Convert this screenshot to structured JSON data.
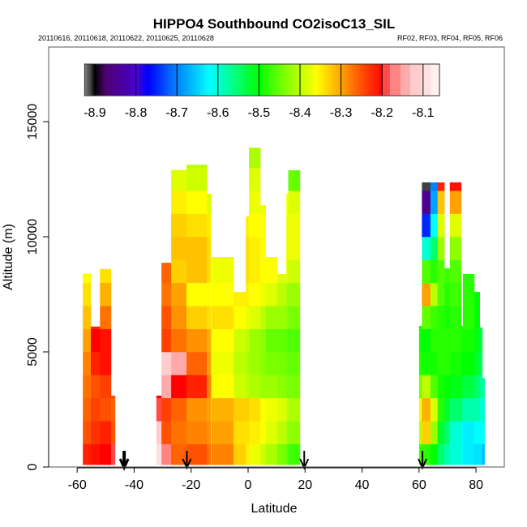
{
  "chart_data": {
    "type": "heatmap",
    "title": "HIPPO4 Southbound CO2isoC13_SIL",
    "subtitle_left": "20110616, 20110618, 20110622, 20110625, 20110628",
    "subtitle_right": "RF02, RF03, RF04, RF05, RF06",
    "xlabel": "Latitude",
    "ylabel": "Altitude (m)",
    "xlim": [
      -70,
      90
    ],
    "ylim": [
      0,
      18000
    ],
    "x_ticks": [
      "-60",
      "-40",
      "-20",
      "0",
      "20",
      "40",
      "60",
      "80"
    ],
    "x_tick_values": [
      -60,
      -40,
      -20,
      0,
      20,
      40,
      60,
      80
    ],
    "y_ticks": [
      "0",
      "5000",
      "10000",
      "15000"
    ],
    "y_tick_values": [
      0,
      5000,
      10000,
      15000
    ],
    "colorbar": {
      "range": [
        -8.925,
        -8.06
      ],
      "tick_labels": [
        "-8.9",
        "-8.8",
        "-8.7",
        "-8.6",
        "-8.5",
        "-8.4",
        "-8.3",
        "-8.2",
        "-8.1"
      ],
      "tick_values": [
        -8.9,
        -8.8,
        -8.7,
        -8.6,
        -8.5,
        -8.4,
        -8.3,
        -8.2,
        -8.1
      ],
      "placement": "top-inset"
    },
    "band_height_m": 1000,
    "columns": [
      {
        "lat": [
          -58,
          -55.2
        ],
        "alt": [
          100,
          8400
        ],
        "values": [
          -8.22,
          -8.25,
          -8.26,
          -8.27,
          -8.28,
          -8.3,
          -8.32,
          -8.34,
          -8.36
        ]
      },
      {
        "lat": [
          -55.2,
          -52
        ],
        "alt": [
          100,
          6100
        ],
        "values": [
          -8.21,
          -8.23,
          -8.24,
          -8.25,
          -8.22,
          -8.2,
          -8.22
        ]
      },
      {
        "lat": [
          -52,
          -48.1
        ],
        "alt": [
          100,
          8600
        ],
        "values": [
          -8.2,
          -8.22,
          -8.25,
          -8.24,
          -8.21,
          -8.21,
          -8.27,
          -8.31,
          -8.34
        ]
      },
      {
        "lat": [
          -48.1,
          -46.7
        ],
        "alt": [
          100,
          3100
        ],
        "values": [
          -8.19,
          -8.25,
          -8.26,
          -8.25
        ]
      },
      {
        "lat": [
          -32.2,
          -30.4
        ],
        "alt": [
          100,
          3100
        ],
        "values": [
          -8.1,
          -8.12,
          -8.19,
          -8.2
        ]
      },
      {
        "lat": [
          -30.4,
          -27
        ],
        "alt": [
          100,
          8870
        ],
        "values": [
          -8.16,
          -8.25,
          -8.24,
          -8.13,
          -8.11,
          -8.24,
          -8.25,
          -8.27,
          -8.26
        ]
      },
      {
        "lat": [
          -27,
          -21.6
        ],
        "alt": [
          100,
          12900
        ],
        "values": [
          -8.26,
          -8.27,
          -8.26,
          -8.2,
          -8.14,
          -8.27,
          -8.29,
          -8.3,
          -8.33,
          -8.32,
          -8.33,
          -8.35,
          -8.38
        ]
      },
      {
        "lat": [
          -21.6,
          -14.5
        ],
        "alt": [
          100,
          13130
        ],
        "values": [
          -8.25,
          -8.28,
          -8.29,
          -8.22,
          -8.26,
          -8.29,
          -8.33,
          -8.36,
          -8.32,
          -8.32,
          -8.34,
          -8.36,
          -8.39,
          -8.4
        ]
      },
      {
        "lat": [
          -14.5,
          -13
        ],
        "alt": [
          100,
          11870
        ],
        "values": [
          -8.27,
          -8.29,
          -8.3,
          -8.28,
          -8.3,
          -8.31,
          -8.34,
          -8.36,
          -8.34,
          -8.34,
          -8.35,
          -8.38
        ]
      },
      {
        "lat": [
          -12.8,
          -5.1
        ],
        "alt": [
          100,
          9120
        ],
        "values": [
          -8.28,
          -8.3,
          -8.31,
          -8.36,
          -8.37,
          -8.36,
          -8.34,
          -8.36,
          -8.37,
          -8.37
        ]
      },
      {
        "lat": [
          -5.1,
          -0.8
        ],
        "alt": [
          100,
          7600
        ],
        "values": [
          -8.33,
          -8.34,
          -8.33,
          -8.39,
          -8.4,
          -8.39,
          -8.36,
          -8.35
        ]
      },
      {
        "lat": [
          -0.8,
          0.3
        ],
        "alt": [
          100,
          10880
        ],
        "values": [
          -8.35,
          -8.34,
          -8.33,
          -8.4,
          -8.41,
          -8.4,
          -8.37,
          -8.35,
          -8.34,
          -8.34,
          -8.35
        ]
      },
      {
        "lat": [
          0.3,
          4.3
        ],
        "alt": [
          100,
          13870
        ],
        "values": [
          -8.37,
          -8.35,
          -8.34,
          -8.41,
          -8.42,
          -8.42,
          -8.38,
          -8.36,
          -8.35,
          -8.35,
          -8.36,
          -8.37,
          -8.38,
          -8.41
        ]
      },
      {
        "lat": [
          4.3,
          6.2
        ],
        "alt": [
          100,
          11370
        ],
        "values": [
          -8.39,
          -8.36,
          -8.36,
          -8.42,
          -8.43,
          -8.43,
          -8.4,
          -8.37,
          -8.36,
          -8.36,
          -8.36,
          -8.37
        ]
      },
      {
        "lat": [
          6.2,
          10.2
        ],
        "alt": [
          100,
          9120
        ],
        "values": [
          -8.41,
          -8.38,
          -8.37,
          -8.42,
          -8.44,
          -8.45,
          -8.42,
          -8.38,
          -8.36,
          -8.36
        ]
      },
      {
        "lat": [
          10.2,
          13.4
        ],
        "alt": [
          100,
          8380
        ],
        "values": [
          -8.44,
          -8.4,
          -8.38,
          -8.43,
          -8.44,
          -8.45,
          -8.42,
          -8.4,
          -8.38
        ]
      },
      {
        "lat": [
          13.4,
          14.1
        ],
        "alt": [
          100,
          11870
        ],
        "values": [
          -8.45,
          -8.42,
          -8.4,
          -8.44,
          -8.45,
          -8.46,
          -8.43,
          -8.42,
          -8.38,
          -8.37,
          -8.37,
          -8.36
        ]
      },
      {
        "lat": [
          14.1,
          18.2
        ],
        "alt": [
          100,
          12890
        ],
        "values": [
          -8.47,
          -8.43,
          -8.41,
          -8.44,
          -8.45,
          -8.46,
          -8.44,
          -8.42,
          -8.39,
          -8.37,
          -8.37,
          -8.38,
          -8.45
        ]
      },
      {
        "lat": [
          60,
          61
        ],
        "alt": [
          100,
          6130
        ],
        "values": [
          -8.47,
          -8.4,
          -8.37,
          -8.44,
          -8.48,
          -8.49,
          -8.49
        ]
      },
      {
        "lat": [
          61,
          64
        ],
        "alt": [
          100,
          12360
        ],
        "values": [
          -8.48,
          -8.33,
          -8.31,
          -8.4,
          -8.49,
          -8.5,
          -8.45,
          -8.3,
          -8.46,
          -8.6,
          -8.75,
          -8.85,
          -8.91
        ]
      },
      {
        "lat": [
          64,
          66.5
        ],
        "alt": [
          100,
          12360
        ],
        "values": [
          -8.5,
          -8.42,
          -8.38,
          -8.46,
          -8.49,
          -8.48,
          -8.47,
          -8.4,
          -8.48,
          -8.55,
          -8.62,
          -8.68,
          -8.7
        ]
      },
      {
        "lat": [
          66.5,
          68.9
        ],
        "alt": [
          100,
          12360
        ],
        "values": [
          -8.55,
          -8.52,
          -8.48,
          -8.49,
          -8.48,
          -8.48,
          -8.48,
          -8.46,
          -8.46,
          -8.42,
          -8.38,
          -8.32,
          -8.22
        ]
      },
      {
        "lat": [
          68.9,
          70.8
        ],
        "alt": [
          100,
          8630
        ],
        "values": [
          -8.58,
          -8.55,
          -8.52,
          -8.5,
          -8.48,
          -8.48,
          -8.49,
          -8.48,
          -8.47
        ]
      },
      {
        "lat": [
          70.8,
          74.8
        ],
        "alt": [
          100,
          12360
        ],
        "values": [
          -8.6,
          -8.6,
          -8.55,
          -8.51,
          -8.49,
          -8.48,
          -8.48,
          -8.47,
          -8.46,
          -8.43,
          -8.38,
          -8.3,
          -8.21
        ]
      },
      {
        "lat": [
          74.8,
          75.4
        ],
        "alt": [
          100,
          6130
        ],
        "values": [
          -8.62,
          -8.62,
          -8.57,
          -8.52,
          -8.5,
          -8.49,
          -8.49
        ]
      },
      {
        "lat": [
          75.4,
          79.4
        ],
        "alt": [
          100,
          8380
        ],
        "values": [
          -8.63,
          -8.63,
          -8.58,
          -8.53,
          -8.5,
          -8.49,
          -8.48,
          -8.48,
          -8.48
        ]
      },
      {
        "lat": [
          79.4,
          81.3
        ],
        "alt": [
          100,
          7600
        ],
        "values": [
          -8.64,
          -8.62,
          -8.58,
          -8.55,
          -8.52,
          -8.51,
          -8.5,
          -8.5
        ]
      },
      {
        "lat": [
          81.3,
          82.2
        ],
        "alt": [
          100,
          6060
        ],
        "values": [
          -8.64,
          -8.62,
          -8.6,
          -8.57,
          -8.54,
          -8.53,
          -8.52
        ]
      },
      {
        "lat": [
          82.2,
          83
        ],
        "alt": [
          100,
          3870
        ],
        "values": [
          -8.66,
          -8.62,
          -8.6,
          -8.58
        ]
      }
    ],
    "arrows": [
      {
        "lat": -43.5,
        "heavy": true
      },
      {
        "lat": -21.5,
        "heavy": false
      },
      {
        "lat": 19.7,
        "heavy": false
      },
      {
        "lat": 61.2,
        "heavy": false
      }
    ]
  }
}
